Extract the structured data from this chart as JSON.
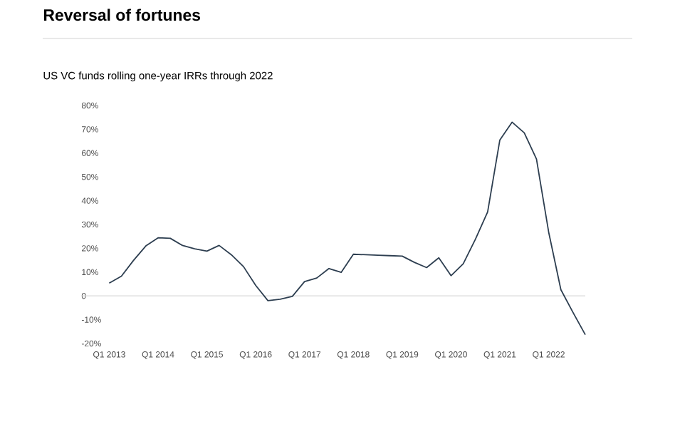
{
  "chart_data": {
    "type": "line",
    "title": "Reversal of fortunes",
    "subtitle": "US VC funds rolling one-year IRRs through 2022",
    "categories": [
      "Q1 2013",
      null,
      null,
      null,
      "Q1 2014",
      null,
      null,
      null,
      "Q1 2015",
      null,
      null,
      null,
      "Q1 2016",
      null,
      null,
      null,
      "Q1 2017",
      null,
      null,
      null,
      "Q1 2018",
      null,
      null,
      null,
      "Q1 2019",
      null,
      null,
      null,
      "Q1 2020",
      null,
      null,
      null,
      "Q1 2021",
      null,
      null,
      null,
      "Q1 2022",
      null,
      null,
      null
    ],
    "series": [
      {
        "color": "#2d3e50",
        "values": [
          5.4,
          8.3,
          15,
          21,
          24.4,
          24.2,
          21.2,
          19.8,
          18.8,
          21.2,
          17.3,
          12.3,
          4.4,
          -2,
          -1.4,
          -0.2,
          6,
          7.5,
          11.5,
          9.9,
          17.5,
          17.3,
          17.1,
          16.9,
          16.7,
          14.1,
          11.9,
          16,
          8.5,
          13.5,
          23.8,
          35.3,
          65.5,
          73,
          68.5,
          57.5,
          26.8,
          2.6,
          -7,
          -16.3
        ]
      }
    ],
    "ylim": [
      -20,
      80
    ],
    "yticks": [
      {
        "value": -20,
        "label": "-20%"
      },
      {
        "value": -10,
        "label": "-10%"
      },
      0,
      {
        "value": 10,
        "label": "10%"
      },
      {
        "value": 20,
        "label": "20%"
      },
      {
        "value": 30,
        "label": "30%"
      },
      {
        "value": 40,
        "label": "40%"
      },
      {
        "value": 50,
        "label": "50%"
      },
      {
        "value": 60,
        "label": "60%"
      },
      {
        "value": 70,
        "label": "70%"
      },
      {
        "value": 80,
        "label": "80%"
      }
    ],
    "ref_lines": [
      {
        "axis": "y",
        "value": 0,
        "color": "#d9d9d9"
      }
    ],
    "grid": false,
    "legend": false,
    "marker": "none",
    "line_style": "solid"
  }
}
